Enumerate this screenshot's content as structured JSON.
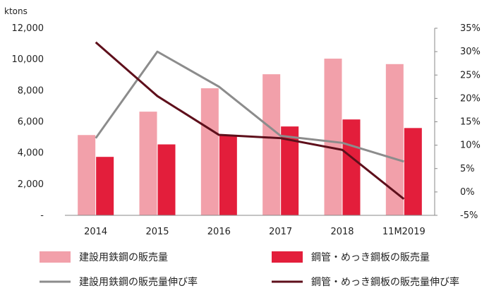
{
  "chart_data": {
    "type": "bar",
    "unit_label": "ktons",
    "categories": [
      "2014",
      "2015",
      "2016",
      "2017",
      "2018",
      "11M2019"
    ],
    "y_left": {
      "min": 0,
      "max": 12000,
      "ticks": [
        "-",
        "2,000",
        "4,000",
        "6,000",
        "8,000",
        "10,000",
        "12,000"
      ]
    },
    "y_right": {
      "min": -5,
      "max": 35,
      "ticks": [
        "-5%",
        "0%",
        "5%",
        "10%",
        "15%",
        "20%",
        "25%",
        "30%",
        "35%"
      ]
    },
    "bar_series": [
      {
        "name": "建設用鉄鋼の販売量",
        "color": "#f2a0aa",
        "values": [
          5150,
          6650,
          8150,
          9050,
          10050,
          9700
        ]
      },
      {
        "name": "鋼管・めっき鋼板の販売量",
        "color": "#e31e3b",
        "values": [
          3750,
          4550,
          5150,
          5700,
          6150,
          5600
        ]
      }
    ],
    "line_series": [
      {
        "name": "建設用鉄鋼の販売量伸び率",
        "color": "#8c8c8c",
        "values": [
          11.5,
          30,
          22.5,
          12,
          10.5,
          6.5
        ]
      },
      {
        "name": "鋼管・めっき鋼板の販売量伸び率",
        "color": "#5e0f1b",
        "values": [
          32,
          20.5,
          12.2,
          11.5,
          9,
          -1.5
        ]
      }
    ],
    "legend": [
      {
        "label": "建設用鉄鋼の販売量",
        "kind": "bar",
        "color": "#f2a0aa"
      },
      {
        "label": "鋼管・めっき鋼板の販売量",
        "kind": "bar",
        "color": "#e31e3b"
      },
      {
        "label": "建設用鉄鋼の販売量伸び率",
        "kind": "line",
        "color": "#8c8c8c"
      },
      {
        "label": "鋼管・めっき鋼板の販売量伸び率",
        "kind": "line",
        "color": "#5e0f1b"
      }
    ]
  }
}
